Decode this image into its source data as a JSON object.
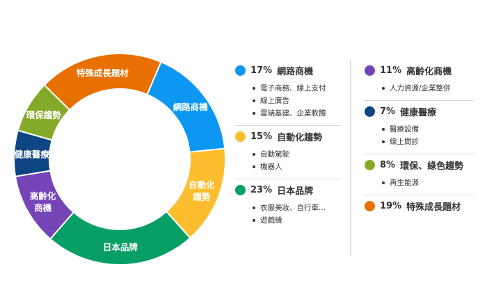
{
  "chart_data": {
    "type": "pie",
    "donut": true,
    "slices": [
      {
        "label": "網路商機",
        "chart_label": "網路商機",
        "value": 17,
        "color": "#0d97f2",
        "subitems": [
          "電子商務、線上支付",
          "線上廣告",
          "雲端基建、企業軟體"
        ]
      },
      {
        "label": "自動化趨勢",
        "chart_label": "自動化趨勢",
        "value": 15,
        "color": "#fcbd2f",
        "subitems": [
          "自動駕駛",
          "機器人"
        ]
      },
      {
        "label": "日本品牌",
        "chart_label": "日本品牌",
        "value": 23,
        "color": "#079f66",
        "subitems": [
          "衣服美妝、自行車...",
          "遊戲機"
        ]
      },
      {
        "label": "高齡化商機",
        "chart_label": "高齡化商機",
        "value": 11,
        "color": "#7545b8",
        "subitems": [
          "人力資源/企業整併"
        ]
      },
      {
        "label": "健康醫療",
        "chart_label": "健康醫療",
        "value": 7,
        "color": "#0d4582",
        "subitems": [
          "醫療設備",
          "線上問診"
        ]
      },
      {
        "label": "環保、綠色趨勢",
        "chart_label": "環保趨勢",
        "value": 8,
        "color": "#85aa29",
        "subitems": [
          "再生能源"
        ]
      },
      {
        "label": "特殊成長題材",
        "chart_label": "特殊成長題材",
        "value": 19,
        "color": "#e87000",
        "subitems": []
      }
    ],
    "legend_placement": "right",
    "legend_left": [
      0,
      1,
      2
    ],
    "legend_right": [
      3,
      4,
      5,
      6
    ]
  }
}
